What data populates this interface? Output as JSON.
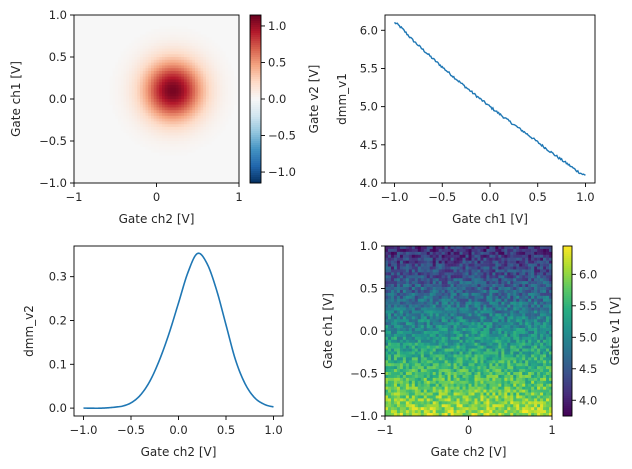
{
  "chart_data": [
    {
      "panel": "top-left",
      "type": "heatmap",
      "xlabel": "Gate ch2 [V]",
      "ylabel": "Gate ch1 [V]",
      "xlim": [
        -1,
        1
      ],
      "ylim": [
        -1,
        1
      ],
      "xticks": [
        "−1",
        "0",
        "1"
      ],
      "yticks": [
        "1.0",
        "0.5",
        "0.0",
        "−0.5",
        "−1.0"
      ],
      "colorbar": {
        "label": "Gate v2 [V]",
        "range": [
          -1.15,
          1.15
        ],
        "colormap": "RdBu_r",
        "ticks": [
          "1.0",
          "0.5",
          "0.0",
          "−0.5",
          "−1.0"
        ],
        "tick_values": [
          1.0,
          0.5,
          0.0,
          -0.5,
          -1.0
        ]
      },
      "peak": {
        "x": 0.2,
        "y": 0.1,
        "value": 1.1,
        "sigma": 0.25
      }
    },
    {
      "panel": "top-right",
      "type": "line",
      "xlabel": "Gate ch1 [V]",
      "ylabel": "dmm_v1",
      "xlim": [
        -1.1,
        1.1
      ],
      "ylim": [
        4.0,
        6.2
      ],
      "xticks": [
        "−1.0",
        "−0.5",
        "0.0",
        "0.5",
        "1.0"
      ],
      "yticks": [
        "6.0",
        "5.5",
        "5.0",
        "4.5",
        "4.0"
      ],
      "color": "#1f77b4",
      "series": [
        {
          "x": [
            -1.0,
            -0.8,
            -0.6,
            -0.4,
            -0.2,
            0.0,
            0.2,
            0.4,
            0.6,
            0.8,
            1.0
          ],
          "y": [
            6.1,
            5.86,
            5.63,
            5.41,
            5.2,
            5.0,
            4.81,
            4.63,
            4.44,
            4.26,
            4.1
          ]
        }
      ]
    },
    {
      "panel": "bottom-left",
      "type": "line",
      "xlabel": "Gate ch2 [V]",
      "ylabel": "dmm_v2",
      "xlim": [
        -1.1,
        1.1
      ],
      "ylim": [
        -0.018,
        0.37
      ],
      "xticks": [
        "−1.0",
        "−0.5",
        "0.0",
        "0.5",
        "1.0"
      ],
      "yticks": [
        "0.3",
        "0.2",
        "0.1",
        "0.0"
      ],
      "color": "#1f77b4",
      "series": [
        {
          "x": [
            -1.0,
            -0.8,
            -0.6,
            -0.5,
            -0.4,
            -0.3,
            -0.2,
            -0.1,
            0.0,
            0.1,
            0.2,
            0.3,
            0.4,
            0.5,
            0.6,
            0.7,
            0.8,
            0.9,
            1.0
          ],
          "y": [
            0.0,
            0.0,
            0.004,
            0.012,
            0.03,
            0.062,
            0.11,
            0.17,
            0.24,
            0.31,
            0.353,
            0.33,
            0.27,
            0.19,
            0.11,
            0.056,
            0.024,
            0.009,
            0.003
          ]
        }
      ]
    },
    {
      "panel": "bottom-right",
      "type": "heatmap",
      "xlabel": "Gate ch2 [V]",
      "ylabel": "Gate ch1 [V]",
      "xlim": [
        -1,
        1
      ],
      "ylim": [
        -1,
        1
      ],
      "xticks": [
        "−1",
        "0",
        "1"
      ],
      "yticks": [
        "1.0",
        "0.5",
        "0.0",
        "−0.5",
        "−1.0"
      ],
      "colorbar": {
        "label": "Gate v1 [V]",
        "range": [
          3.75,
          6.45
        ],
        "colormap": "viridis",
        "ticks": [
          "6.0",
          "5.5",
          "5.0",
          "4.5",
          "4.0"
        ],
        "tick_values": [
          6.0,
          5.5,
          5.0,
          4.5,
          4.0
        ]
      },
      "value_at_ch1": {
        "ch1": [
          -1.0,
          1.0
        ],
        "value": [
          6.1,
          4.1
        ]
      },
      "noise": 0.5
    }
  ]
}
